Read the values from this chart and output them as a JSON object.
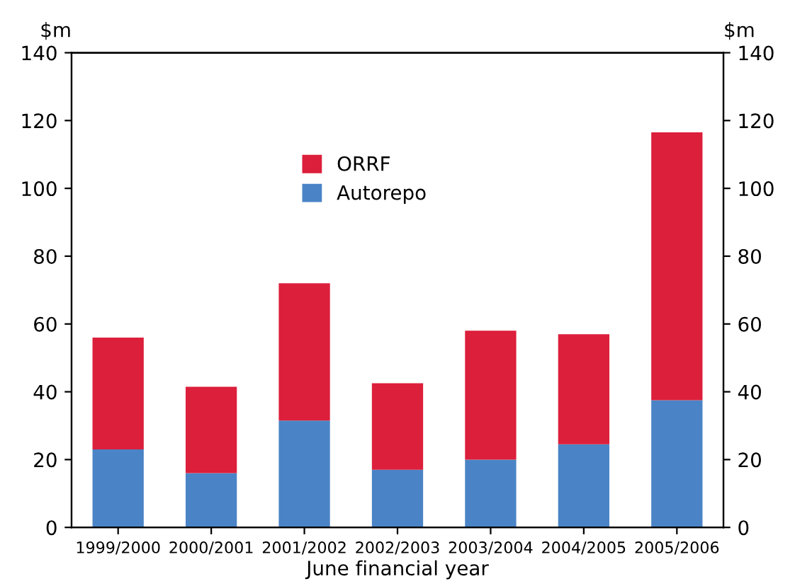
{
  "chart_data": {
    "type": "bar",
    "stacked": true,
    "categories": [
      "1999/2000",
      "2000/2001",
      "2001/2002",
      "2002/2003",
      "2003/2004",
      "2004/2005",
      "2005/2006"
    ],
    "series": [
      {
        "name": "Autorepo",
        "color": "#4a84c6",
        "values": [
          23,
          16,
          31.5,
          17,
          20,
          24.5,
          37.5
        ]
      },
      {
        "name": "ORRF",
        "color": "#dc1f3b",
        "values": [
          33,
          25.5,
          40.5,
          25.5,
          38,
          32.5,
          79
        ]
      }
    ],
    "xlabel": "June financial year",
    "ylabel": "$m",
    "y2label": "$m",
    "ylim": [
      0,
      140
    ],
    "yticks": [
      0,
      20,
      40,
      60,
      80,
      100,
      120,
      140
    ],
    "y2lim": [
      0,
      140
    ],
    "y2ticks": [
      0,
      20,
      40,
      60,
      80,
      100,
      120,
      140
    ],
    "legend": "top",
    "grid": false
  }
}
